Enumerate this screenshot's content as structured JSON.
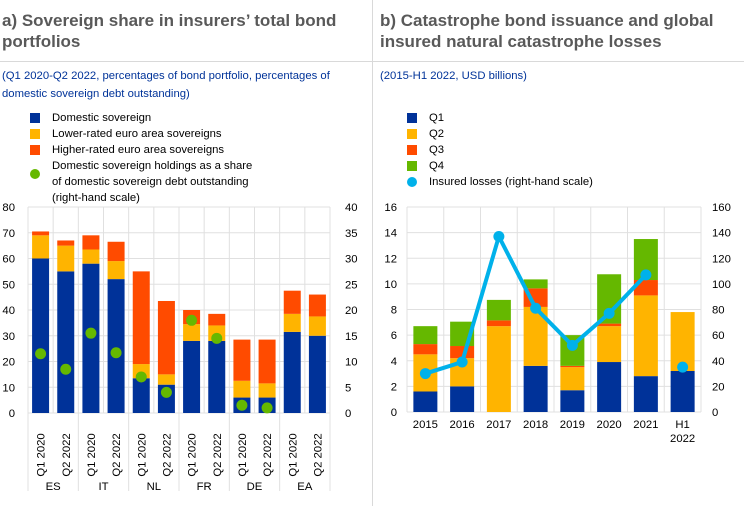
{
  "panel_a": {
    "title": "a) Sovereign share in insurers’ total bond portfolios",
    "subtitle": "(Q1 2020-Q2 2022, percentages of bond portfolio, percentages of domestic sovereign debt outstanding)",
    "legend": [
      {
        "label": "Domestic sovereign",
        "color": "#003299",
        "kind": "square"
      },
      {
        "label": "Lower-rated euro area sovereigns",
        "color": "#FFB400",
        "kind": "square"
      },
      {
        "label": "Higher-rated euro area sovereigns",
        "color": "#FF4B00",
        "kind": "square"
      },
      {
        "label": "Domestic sovereign holdings as a share of domestic sovereign debt outstanding (right-hand scale)",
        "color": "#65B800",
        "kind": "dot"
      }
    ]
  },
  "panel_b": {
    "title": "b) Catastrophe bond issuance and global insured natural catastrophe losses",
    "subtitle": "(2015-H1 2022, USD billions)",
    "legend": [
      {
        "label": "Q1",
        "color": "#003299",
        "kind": "square"
      },
      {
        "label": "Q2",
        "color": "#FFB400",
        "kind": "square"
      },
      {
        "label": "Q3",
        "color": "#FF4B00",
        "kind": "square"
      },
      {
        "label": "Q4",
        "color": "#65B800",
        "kind": "square"
      },
      {
        "label": "Insured losses (right-hand scale)",
        "color": "#00B1EA",
        "kind": "dot"
      }
    ]
  },
  "chart_data": [
    {
      "type": "bar",
      "stacked": true,
      "title": "a) Sovereign share in insurers’ total bond portfolios",
      "groups": [
        "ES",
        "IT",
        "NL",
        "FR",
        "DE",
        "EA"
      ],
      "categories": [
        "Q1 2020",
        "Q2 2022",
        "Q1 2020",
        "Q2 2022",
        "Q1 2020",
        "Q2 2022",
        "Q1 2020",
        "Q2 2022",
        "Q1 2020",
        "Q2 2022",
        "Q1 2020",
        "Q2 2022"
      ],
      "series": [
        {
          "name": "Domestic sovereign",
          "color": "#003299",
          "values": [
            60,
            55,
            58,
            52,
            13.5,
            11,
            28,
            28,
            6,
            6,
            31.5,
            30
          ]
        },
        {
          "name": "Lower-rated euro area sovereigns",
          "color": "#FFB400",
          "values": [
            9,
            10,
            5.5,
            7,
            5.5,
            4,
            6.5,
            6,
            6.5,
            5.5,
            7,
            7.5
          ]
        },
        {
          "name": "Higher-rated euro area sovereigns",
          "color": "#FF4B00",
          "values": [
            1.5,
            2,
            5.5,
            7.5,
            36,
            28.5,
            5.5,
            4.5,
            16,
            17,
            9,
            8.5
          ]
        }
      ],
      "secondary_series": {
        "name": "Domestic sovereign holdings as a share of domestic sovereign debt outstanding (right-hand scale)",
        "color": "#65B800",
        "type": "scatter",
        "values": [
          11.5,
          8.5,
          15.5,
          11.7,
          7,
          4,
          18,
          14.5,
          1.5,
          1,
          null,
          null
        ]
      },
      "ylim": [
        0,
        80
      ],
      "yticks": [
        "0",
        "10",
        "20",
        "30",
        "40",
        "50",
        "60",
        "70",
        "80"
      ],
      "y2lim": [
        0,
        40
      ],
      "y2ticks": [
        "0",
        "5",
        "10",
        "15",
        "20",
        "25",
        "30",
        "35",
        "40"
      ],
      "grid": true
    },
    {
      "type": "bar",
      "stacked": true,
      "title": "b) Catastrophe bond issuance and global insured natural catastrophe losses",
      "categories": [
        "2015",
        "2016",
        "2017",
        "2018",
        "2019",
        "2020",
        "2021",
        "H1 2022"
      ],
      "category_lines": [
        [
          "2015"
        ],
        [
          "2016"
        ],
        [
          "2017"
        ],
        [
          "2018"
        ],
        [
          "2019"
        ],
        [
          "2020"
        ],
        [
          "2021"
        ],
        [
          "H1",
          "2022"
        ]
      ],
      "series": [
        {
          "name": "Q1",
          "color": "#003299",
          "values": [
            1.6,
            2.0,
            0,
            3.6,
            1.7,
            3.9,
            2.8,
            3.2
          ]
        },
        {
          "name": "Q2",
          "color": "#FFB400",
          "values": [
            2.9,
            2.2,
            6.7,
            4.6,
            1.8,
            2.8,
            6.3,
            4.6
          ]
        },
        {
          "name": "Q3",
          "color": "#FF4B00",
          "values": [
            0.8,
            0.95,
            0.45,
            1.45,
            0.1,
            0.2,
            1.2,
            0
          ]
        },
        {
          "name": "Q4",
          "color": "#65B800",
          "values": [
            1.4,
            1.9,
            1.6,
            0.7,
            2.4,
            3.85,
            3.2,
            0
          ]
        }
      ],
      "secondary_series": {
        "name": "Insured losses (right-hand scale)",
        "color": "#00B1EA",
        "type": "line",
        "values": [
          30,
          39,
          137,
          81,
          52,
          77,
          107,
          35
        ],
        "connected_until": "2021"
      },
      "ylim": [
        0,
        16
      ],
      "yticks": [
        "0",
        "2",
        "4",
        "6",
        "8",
        "10",
        "12",
        "14",
        "16"
      ],
      "y2lim": [
        0,
        160
      ],
      "y2ticks": [
        "0",
        "20",
        "40",
        "60",
        "80",
        "100",
        "120",
        "140",
        "160"
      ],
      "grid": true
    }
  ]
}
